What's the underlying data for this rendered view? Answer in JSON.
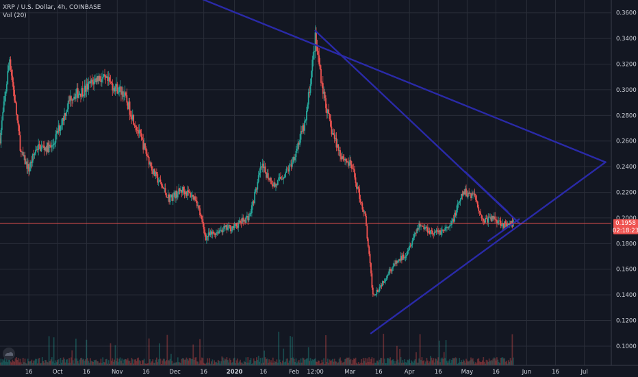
{
  "header": {
    "symbol_line": "XRP / U.S. Dollar, 4h, COINBASE",
    "indicator_line": "Vol (20)"
  },
  "price_scale": {
    "ticks": [
      "0.3600",
      "0.3400",
      "0.3200",
      "0.3000",
      "0.2800",
      "0.2600",
      "0.2400",
      "0.2200",
      "0.2000",
      "0.1800",
      "0.1600",
      "0.1400",
      "0.1200",
      "0.1000"
    ],
    "last_price": "0.1958",
    "countdown": "02:18:23"
  },
  "time_scale": {
    "labels": [
      "16",
      "Oct",
      "16",
      "Nov",
      "16",
      "Dec",
      "16",
      "2020",
      "16",
      "Feb",
      "12:00",
      "Mar",
      "16",
      "Apr",
      "16",
      "May",
      "16",
      "Jun",
      "16",
      "Jul"
    ]
  },
  "colors": {
    "background": "#131722",
    "grid": "#2a2e39",
    "axis_text": "#d1d4dc",
    "candle_up": "#26a69a",
    "candle_down": "#ef5350",
    "trendline": "#2a2aa8",
    "price_line": "#ef5350"
  },
  "chart_data": {
    "type": "candlestick",
    "title": "XRP / U.S. Dollar, 4h, COINBASE",
    "ylim": [
      0.085,
      0.37
    ],
    "x_range": [
      "2019-09-01",
      "2020-07-15"
    ],
    "price_path": [
      [
        "2019-09-01",
        0.262
      ],
      [
        "2019-09-06",
        0.325
      ],
      [
        "2019-09-12",
        0.25
      ],
      [
        "2019-09-16",
        0.238
      ],
      [
        "2019-09-20",
        0.255
      ],
      [
        "2019-09-28",
        0.255
      ],
      [
        "2019-10-08",
        0.295
      ],
      [
        "2019-10-15",
        0.3
      ],
      [
        "2019-10-22",
        0.31
      ],
      [
        "2019-10-28",
        0.305
      ],
      [
        "2019-11-04",
        0.298
      ],
      [
        "2019-11-10",
        0.275
      ],
      [
        "2019-11-20",
        0.235
      ],
      [
        "2019-11-28",
        0.215
      ],
      [
        "2019-12-05",
        0.222
      ],
      [
        "2019-12-12",
        0.215
      ],
      [
        "2019-12-17",
        0.185
      ],
      [
        "2019-12-25",
        0.191
      ],
      [
        "2020-01-01",
        0.193
      ],
      [
        "2020-01-09",
        0.202
      ],
      [
        "2020-01-15",
        0.24
      ],
      [
        "2020-01-22",
        0.225
      ],
      [
        "2020-01-30",
        0.24
      ],
      [
        "2020-02-07",
        0.275
      ],
      [
        "2020-02-12",
        0.34
      ],
      [
        "2020-02-16",
        0.3
      ],
      [
        "2020-02-20",
        0.27
      ],
      [
        "2020-02-25",
        0.25
      ],
      [
        "2020-03-02",
        0.24
      ],
      [
        "2020-03-09",
        0.2
      ],
      [
        "2020-03-13",
        0.14
      ],
      [
        "2020-03-16",
        0.145
      ],
      [
        "2020-03-22",
        0.16
      ],
      [
        "2020-03-30",
        0.172
      ],
      [
        "2020-04-06",
        0.195
      ],
      [
        "2020-04-14",
        0.188
      ],
      [
        "2020-04-22",
        0.192
      ],
      [
        "2020-04-29",
        0.22
      ],
      [
        "2020-05-05",
        0.218
      ],
      [
        "2020-05-09",
        0.198
      ],
      [
        "2020-05-15",
        0.2
      ],
      [
        "2020-05-22",
        0.193
      ],
      [
        "2020-05-25",
        0.196
      ]
    ],
    "volume_avg": 4,
    "drawings": [
      {
        "type": "trendline",
        "from": [
          "2019-11-10",
          0.392
        ],
        "to": [
          "2020-07-12",
          0.2435
        ]
      },
      {
        "type": "trendline",
        "from": [
          "2020-03-12",
          0.11
        ],
        "to": [
          "2020-07-12",
          0.2435
        ]
      },
      {
        "type": "trendline",
        "from": [
          "2020-02-12",
          0.346
        ],
        "to": [
          "2020-05-28",
          0.196
        ]
      },
      {
        "type": "trendline",
        "from": [
          "2020-04-30",
          0.236
        ],
        "to": [
          "2020-05-22",
          0.205
        ]
      },
      {
        "type": "trendline",
        "from": [
          "2020-05-12",
          0.182
        ],
        "to": [
          "2020-05-28",
          0.199
        ]
      }
    ],
    "horizontal_line": 0.1958,
    "grid": true
  }
}
